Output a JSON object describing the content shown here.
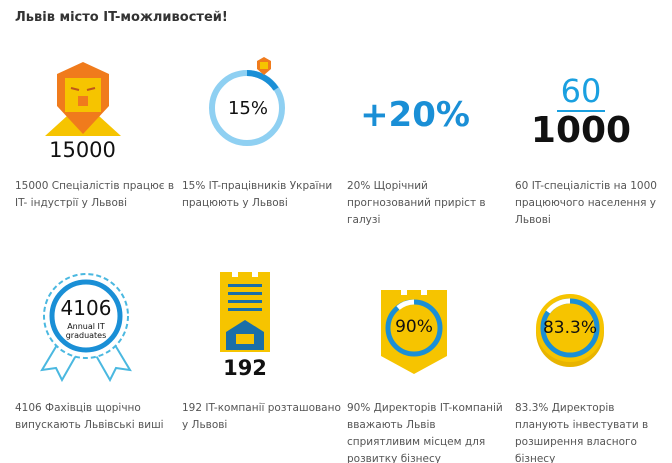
{
  "title": "Львів місто IT-можливостей!",
  "colors": {
    "orange": "#f07b1c",
    "yellow": "#f6c400",
    "blue": "#1a8fd6",
    "light_blue": "#8fd0f2"
  },
  "stats": [
    {
      "figure": "15000",
      "icon": "lion-icon",
      "caption": "15000 Спеціалістів працює в IT- індустрії у Львові"
    },
    {
      "figure": "15%",
      "icon": "progress-ring-icon",
      "value_percent": 15,
      "caption": "15% IT-працівників України працюють у Львові"
    },
    {
      "figure": "+20%",
      "icon": "none",
      "caption": "20% Щорічний прогнозований приріст в галузі"
    },
    {
      "figure_top": "60",
      "figure_bottom": "1000",
      "icon": "fraction",
      "caption": "60 IT-спеціалістів на 1000 працюючого населення у Львові"
    },
    {
      "figure": "4106",
      "sub": "Annual IT graduates",
      "icon": "rosette-icon",
      "caption": "4106 Фахівців щорічно випускають Львівські виші"
    },
    {
      "figure": "192",
      "icon": "building-icon",
      "caption": "192 IT-компанії розташовано у Львові"
    },
    {
      "figure": "90%",
      "icon": "shield-icon",
      "value_percent": 90,
      "caption": "90% Директорів IT-компаній вважають Львів сприятливим місцем для розвитку бізнесу"
    },
    {
      "figure": "83.3%",
      "icon": "coin-icon",
      "value_percent": 83.3,
      "caption": "83.3% Директорів планують інвестувати в розширення власного бізнесу"
    }
  ]
}
